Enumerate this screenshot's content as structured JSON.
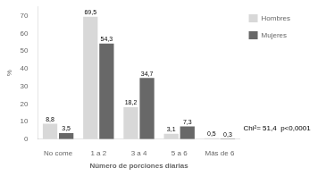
{
  "chart_data": {
    "type": "bar",
    "categories": [
      "No come",
      "1 a 2",
      "3 a 4",
      "5 a 6",
      "Más de 6"
    ],
    "series": [
      {
        "name": "Hombres",
        "color": "#d8d8d8",
        "values": [
          8.8,
          69.5,
          18.2,
          3.1,
          0.5
        ],
        "value_labels": [
          "8,8",
          "69,5",
          "18,2",
          "3,1",
          "0,5"
        ]
      },
      {
        "name": "Mujeres",
        "color": "#686868",
        "values": [
          3.5,
          54.3,
          34.7,
          7.3,
          0.3
        ],
        "value_labels": [
          "3,5",
          "54,3",
          "34,7",
          "7,3",
          "0,3"
        ]
      }
    ],
    "xlabel": "Número de porciones diarias",
    "ylabel": "%",
    "ylim": [
      0,
      75
    ],
    "yticks": [
      0,
      10,
      20,
      30,
      40,
      50,
      60,
      70
    ],
    "legend": "right",
    "grid": false,
    "data_labels": true,
    "annotation": "Chi²= 51,4  p<0,0001"
  }
}
